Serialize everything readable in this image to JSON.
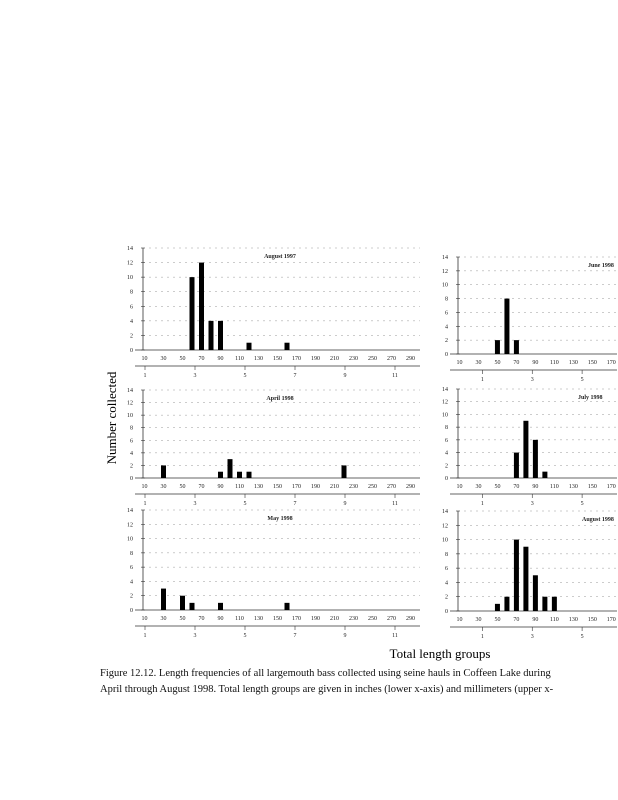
{
  "page": {
    "y_label": "Number collected",
    "x_label": "Total length groups",
    "caption": [
      "Figure 12.12.  Length frequencies of all largemouth bass collected using seine hauls in Coffeen Lake during",
      "April through August 1998.  Total length groups are given in inches (lower x-axis) and millimeters (upper x-"
    ]
  },
  "chart_data": [
    {
      "type": "bar",
      "title": "August 1997",
      "color": "#000000",
      "grid": true,
      "x": [
        60,
        70,
        80,
        90,
        120,
        160
      ],
      "values": [
        10,
        12,
        4,
        4,
        1,
        1
      ],
      "xlim": [
        0,
        300
      ],
      "xticks": [
        10,
        30,
        50,
        70,
        90,
        110,
        130,
        150,
        170,
        190,
        210,
        230,
        250,
        270,
        290
      ],
      "x2lim": [
        0.6,
        12
      ],
      "x2ticks": [
        1,
        3,
        5,
        7,
        9,
        11
      ],
      "ylim": [
        0,
        14
      ],
      "yticks": [
        0,
        2,
        4,
        6,
        8,
        10,
        12,
        14
      ]
    },
    {
      "type": "bar",
      "title": "April 1998",
      "color": "#000000",
      "grid": true,
      "x": [
        30,
        90,
        100,
        110,
        120,
        220
      ],
      "values": [
        2,
        1,
        3,
        1,
        1,
        2
      ],
      "xlim": [
        0,
        300
      ],
      "xticks": [
        10,
        30,
        50,
        70,
        90,
        110,
        130,
        150,
        170,
        190,
        210,
        230,
        250,
        270,
        290
      ],
      "x2lim": [
        0.6,
        12
      ],
      "x2ticks": [
        1,
        3,
        5,
        7,
        9,
        11
      ],
      "ylim": [
        0,
        14
      ],
      "yticks": [
        0,
        2,
        4,
        6,
        8,
        10,
        12,
        14
      ]
    },
    {
      "type": "bar",
      "title": "May 1998",
      "color": "#000000",
      "grid": true,
      "x": [
        30,
        50,
        60,
        90,
        160
      ],
      "values": [
        3,
        2,
        1,
        1,
        1
      ],
      "xlim": [
        0,
        300
      ],
      "xticks": [
        10,
        30,
        50,
        70,
        90,
        110,
        130,
        150,
        170,
        190,
        210,
        230,
        250,
        270,
        290
      ],
      "x2lim": [
        0.6,
        12
      ],
      "x2ticks": [
        1,
        3,
        5,
        7,
        9,
        11
      ],
      "ylim": [
        0,
        14
      ],
      "yticks": [
        0,
        2,
        4,
        6,
        8,
        10,
        12,
        14
      ]
    },
    {
      "type": "bar",
      "title": "June 1998",
      "color": "#000000",
      "grid": true,
      "x": [
        50,
        60,
        70
      ],
      "values": [
        2,
        8,
        2
      ],
      "xlim": [
        0,
        176
      ],
      "xticks": [
        10,
        30,
        50,
        70,
        90,
        110,
        130,
        150,
        170
      ],
      "x2lim": [
        -0.3,
        6.4
      ],
      "x2ticks": [
        1,
        3,
        5
      ],
      "ylim": [
        0,
        14
      ],
      "yticks": [
        0,
        2,
        4,
        6,
        8,
        10,
        12,
        14
      ]
    },
    {
      "type": "bar",
      "title": "July 1998",
      "color": "#000000",
      "grid": true,
      "x": [
        70,
        80,
        90,
        100
      ],
      "values": [
        4,
        9,
        6,
        1
      ],
      "xlim": [
        0,
        176
      ],
      "xticks": [
        10,
        30,
        50,
        70,
        90,
        110,
        130,
        150,
        170
      ],
      "x2lim": [
        -0.3,
        6.4
      ],
      "x2ticks": [
        1,
        3,
        5
      ],
      "ylim": [
        0,
        14
      ],
      "yticks": [
        0,
        2,
        4,
        6,
        8,
        10,
        12,
        14
      ]
    },
    {
      "type": "bar",
      "title": "August 1998",
      "color": "#000000",
      "grid": true,
      "x": [
        50,
        60,
        70,
        80,
        90,
        100,
        110
      ],
      "values": [
        1,
        2,
        10,
        9,
        5,
        2,
        2
      ],
      "xlim": [
        0,
        176
      ],
      "xticks": [
        10,
        30,
        50,
        70,
        90,
        110,
        130,
        150,
        170
      ],
      "x2lim": [
        -0.3,
        6.4
      ],
      "x2ticks": [
        1,
        3,
        5
      ],
      "ylim": [
        0,
        14
      ],
      "yticks": [
        0,
        2,
        4,
        6,
        8,
        10,
        12,
        14
      ]
    }
  ]
}
